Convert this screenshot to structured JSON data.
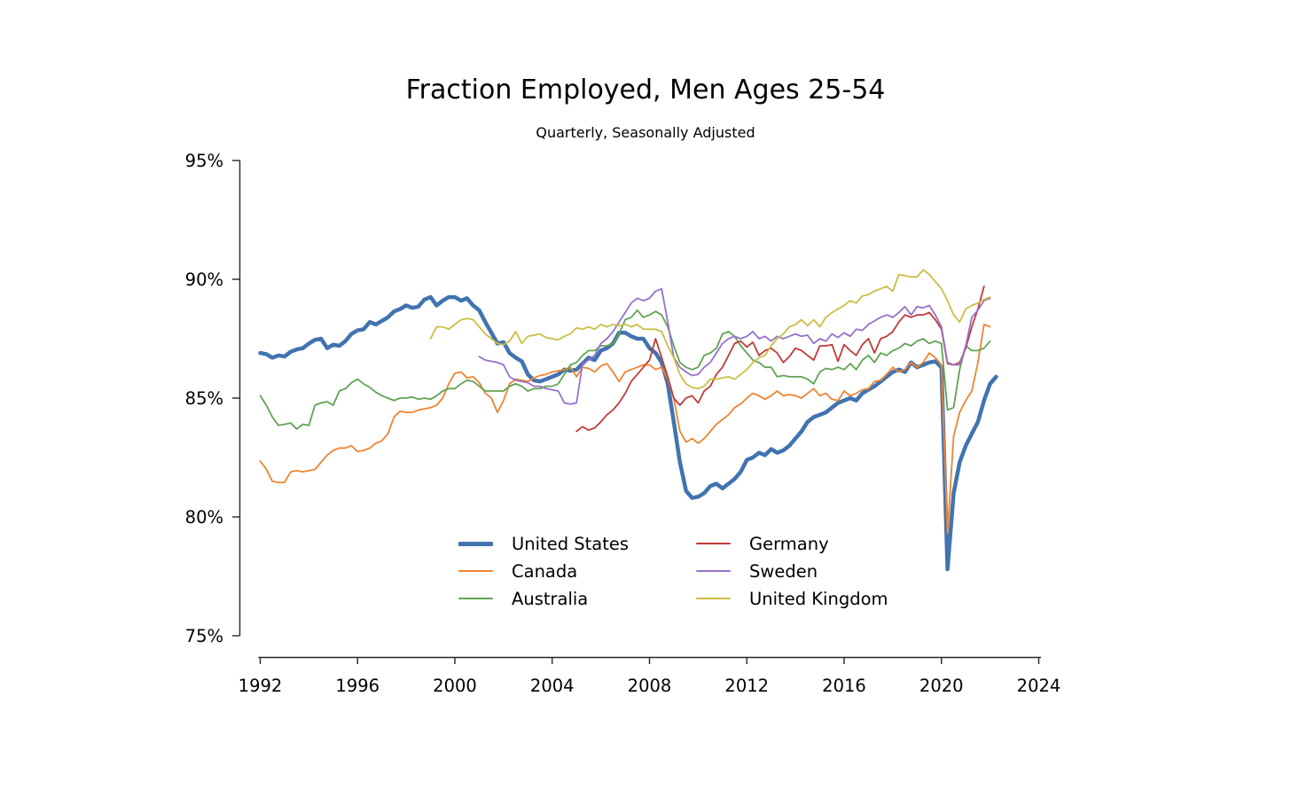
{
  "chart_data": {
    "type": "line",
    "title": "Fraction Employed, Men Ages 25-54",
    "subtitle": "Quarterly, Seasonally Adjusted",
    "xlabel": "",
    "ylabel": "",
    "xlim": [
      1991.9,
      2024.2
    ],
    "ylim": [
      75,
      95
    ],
    "grid": false,
    "legend_position": "lower-center-two-columns",
    "x_ticks": [
      {
        "v": 1992,
        "label": "1992"
      },
      {
        "v": 1996,
        "label": "1996"
      },
      {
        "v": 2000,
        "label": "2000"
      },
      {
        "v": 2004,
        "label": "2004"
      },
      {
        "v": 2008,
        "label": "2008"
      },
      {
        "v": 2012,
        "label": "2012"
      },
      {
        "v": 2016,
        "label": "2016"
      },
      {
        "v": 2020,
        "label": "2020"
      },
      {
        "v": 2024,
        "label": "2024"
      }
    ],
    "y_ticks": [
      {
        "v": 75,
        "label": "75%"
      },
      {
        "v": 80,
        "label": "80%"
      },
      {
        "v": 85,
        "label": "85%"
      },
      {
        "v": 90,
        "label": "90%"
      },
      {
        "v": 95,
        "label": "95%"
      }
    ],
    "axis_color": "#262626",
    "series": [
      {
        "name": "United States",
        "color": "#4173b0",
        "width": 4.5,
        "start": 1992.0,
        "step": 0.25,
        "values": [
          86.9,
          86.85,
          86.7,
          86.8,
          86.75,
          86.95,
          87.05,
          87.1,
          87.3,
          87.45,
          87.5,
          87.1,
          87.25,
          87.2,
          87.4,
          87.7,
          87.85,
          87.9,
          88.2,
          88.1,
          88.25,
          88.4,
          88.65,
          88.75,
          88.9,
          88.8,
          88.85,
          89.15,
          89.25,
          88.9,
          89.1,
          89.25,
          89.25,
          89.1,
          89.2,
          88.9,
          88.7,
          88.2,
          87.75,
          87.3,
          87.35,
          86.9,
          86.7,
          86.55,
          86.0,
          85.75,
          85.7,
          85.8,
          85.9,
          86.0,
          86.2,
          86.15,
          86.2,
          86.45,
          86.7,
          86.6,
          87.0,
          87.1,
          87.3,
          87.75,
          87.75,
          87.6,
          87.5,
          87.5,
          87.1,
          86.9,
          86.5,
          85.6,
          84.0,
          82.3,
          81.1,
          80.8,
          80.85,
          81.0,
          81.3,
          81.4,
          81.2,
          81.4,
          81.6,
          81.9,
          82.4,
          82.5,
          82.7,
          82.6,
          82.85,
          82.7,
          82.8,
          83.0,
          83.3,
          83.6,
          84.0,
          84.2,
          84.3,
          84.4,
          84.6,
          84.8,
          84.9,
          85.0,
          84.9,
          85.2,
          85.35,
          85.5,
          85.7,
          85.9,
          86.1,
          86.2,
          86.1,
          86.5,
          86.3,
          86.4,
          86.5,
          86.55,
          86.3,
          77.8,
          81.0,
          82.3,
          83.0,
          83.5,
          84.0,
          84.9,
          85.6,
          85.9
        ]
      },
      {
        "name": "Canada",
        "color": "#ef8432",
        "width": 1.8,
        "start": 1992.0,
        "step": 0.25,
        "values": [
          82.35,
          82.0,
          81.5,
          81.45,
          81.45,
          81.9,
          81.95,
          81.9,
          81.95,
          82.0,
          82.3,
          82.6,
          82.8,
          82.9,
          82.9,
          83.0,
          82.75,
          82.8,
          82.9,
          83.1,
          83.2,
          83.5,
          84.2,
          84.45,
          84.4,
          84.4,
          84.5,
          84.55,
          84.6,
          84.7,
          85.0,
          85.6,
          86.05,
          86.1,
          85.85,
          85.9,
          85.65,
          85.2,
          85.0,
          84.4,
          84.9,
          85.6,
          85.8,
          85.75,
          85.7,
          85.85,
          85.95,
          86.0,
          86.1,
          86.15,
          86.2,
          86.3,
          85.9,
          86.3,
          86.25,
          86.1,
          86.35,
          86.45,
          86.1,
          85.7,
          86.1,
          86.2,
          86.3,
          86.4,
          86.4,
          86.2,
          86.3,
          85.8,
          85.0,
          83.6,
          83.15,
          83.3,
          83.1,
          83.3,
          83.6,
          83.9,
          84.1,
          84.3,
          84.6,
          84.75,
          85.0,
          85.2,
          85.1,
          84.95,
          85.1,
          85.3,
          85.1,
          85.15,
          85.1,
          85.0,
          85.2,
          85.4,
          85.1,
          85.2,
          84.95,
          84.9,
          85.3,
          85.1,
          85.2,
          85.35,
          85.4,
          85.7,
          85.75,
          86.0,
          86.3,
          86.1,
          86.2,
          86.5,
          86.3,
          86.5,
          86.9,
          86.7,
          86.4,
          79.3,
          83.4,
          84.4,
          84.9,
          85.3,
          86.5,
          88.1,
          88.0
        ]
      },
      {
        "name": "Australia",
        "color": "#60a453",
        "width": 1.8,
        "start": 1992.0,
        "step": 0.25,
        "values": [
          85.1,
          84.7,
          84.2,
          83.85,
          83.9,
          83.95,
          83.7,
          83.9,
          83.85,
          84.7,
          84.8,
          84.85,
          84.7,
          85.3,
          85.4,
          85.65,
          85.8,
          85.6,
          85.45,
          85.25,
          85.1,
          85.0,
          84.9,
          85.0,
          85.0,
          85.05,
          84.95,
          85.0,
          84.95,
          85.1,
          85.3,
          85.4,
          85.4,
          85.6,
          85.75,
          85.7,
          85.5,
          85.3,
          85.3,
          85.3,
          85.3,
          85.5,
          85.6,
          85.5,
          85.3,
          85.4,
          85.4,
          85.5,
          85.5,
          85.6,
          86.0,
          86.4,
          86.5,
          86.8,
          87.0,
          87.0,
          87.2,
          87.2,
          87.3,
          87.7,
          88.3,
          88.4,
          88.7,
          88.4,
          88.5,
          88.65,
          88.5,
          88.0,
          87.2,
          86.5,
          86.3,
          86.2,
          86.3,
          86.8,
          86.9,
          87.1,
          87.7,
          87.8,
          87.6,
          87.2,
          86.9,
          86.6,
          86.5,
          86.3,
          86.3,
          85.9,
          85.95,
          85.9,
          85.9,
          85.9,
          85.8,
          85.6,
          86.1,
          86.25,
          86.2,
          86.3,
          86.2,
          86.45,
          86.2,
          86.6,
          86.8,
          86.5,
          86.9,
          86.8,
          87.0,
          87.1,
          87.3,
          87.2,
          87.4,
          87.5,
          87.3,
          87.4,
          87.3,
          84.5,
          84.6,
          86.2,
          87.2,
          87.0,
          87.0,
          87.1,
          87.4
        ]
      },
      {
        "name": "Germany",
        "color": "#c13b3b",
        "width": 1.8,
        "start": 2005.0,
        "step": 0.25,
        "values": [
          83.6,
          83.8,
          83.65,
          83.75,
          84.0,
          84.3,
          84.5,
          84.8,
          85.2,
          85.7,
          86.0,
          86.3,
          86.6,
          87.5,
          86.7,
          85.9,
          85.0,
          84.7,
          85.0,
          85.1,
          84.8,
          85.3,
          85.5,
          86.0,
          86.3,
          86.8,
          87.3,
          87.4,
          87.15,
          87.35,
          86.8,
          87.0,
          87.1,
          86.9,
          86.5,
          86.75,
          87.1,
          87.0,
          86.8,
          86.6,
          87.2,
          87.2,
          87.25,
          86.55,
          87.25,
          87.0,
          86.8,
          87.25,
          87.5,
          86.9,
          87.5,
          87.6,
          87.8,
          88.2,
          88.5,
          88.4,
          88.5,
          88.5,
          88.6,
          88.3,
          87.9,
          86.45,
          86.4,
          86.5,
          87.1,
          88.0,
          88.75,
          89.7
        ]
      },
      {
        "name": "Sweden",
        "color": "#9671cc",
        "width": 1.8,
        "start": 2001.0,
        "step": 0.25,
        "values": [
          86.75,
          86.6,
          86.55,
          86.5,
          86.4,
          85.9,
          85.75,
          85.7,
          85.65,
          85.5,
          85.5,
          85.4,
          85.35,
          85.3,
          84.8,
          84.75,
          84.8,
          86.45,
          86.6,
          86.8,
          87.3,
          87.5,
          87.8,
          88.2,
          88.6,
          89.0,
          89.2,
          89.1,
          89.2,
          89.5,
          89.6,
          88.2,
          86.7,
          86.3,
          86.1,
          85.95,
          86.0,
          86.3,
          86.5,
          86.9,
          87.3,
          87.5,
          87.6,
          87.5,
          87.6,
          87.8,
          87.5,
          87.6,
          87.4,
          87.6,
          87.5,
          87.6,
          87.7,
          87.6,
          87.65,
          87.3,
          87.5,
          87.4,
          87.7,
          87.55,
          87.75,
          87.6,
          87.9,
          87.85,
          88.1,
          88.25,
          88.4,
          88.5,
          88.4,
          88.6,
          88.85,
          88.5,
          88.85,
          88.8,
          88.9,
          88.5,
          88.0,
          86.5,
          86.4,
          86.4,
          87.2,
          88.4,
          88.7,
          89.1,
          89.2
        ]
      },
      {
        "name": "United Kingdom",
        "color": "#ccbe44",
        "width": 1.8,
        "start": 1999.0,
        "step": 0.25,
        "values": [
          87.5,
          88.0,
          88.0,
          87.9,
          88.1,
          88.3,
          88.35,
          88.3,
          88.0,
          87.7,
          87.5,
          87.3,
          87.25,
          87.4,
          87.8,
          87.3,
          87.6,
          87.65,
          87.7,
          87.55,
          87.5,
          87.45,
          87.6,
          87.7,
          87.95,
          87.9,
          88.0,
          87.9,
          88.1,
          88.0,
          88.1,
          88.05,
          88.1,
          88.0,
          88.1,
          87.9,
          87.9,
          87.9,
          87.8,
          87.2,
          86.7,
          86.0,
          85.6,
          85.45,
          85.4,
          85.5,
          85.8,
          85.8,
          85.85,
          85.9,
          85.8,
          86.0,
          86.2,
          86.5,
          86.7,
          86.8,
          87.2,
          87.5,
          87.7,
          88.0,
          88.1,
          88.3,
          88.05,
          88.3,
          88.0,
          88.4,
          88.6,
          88.75,
          88.9,
          89.1,
          89.0,
          89.3,
          89.35,
          89.5,
          89.6,
          89.7,
          89.5,
          90.2,
          90.15,
          90.1,
          90.1,
          90.4,
          90.2,
          89.9,
          89.6,
          89.1,
          88.5,
          88.2,
          88.75,
          88.9,
          89.0,
          89.15,
          89.25
        ]
      }
    ]
  }
}
